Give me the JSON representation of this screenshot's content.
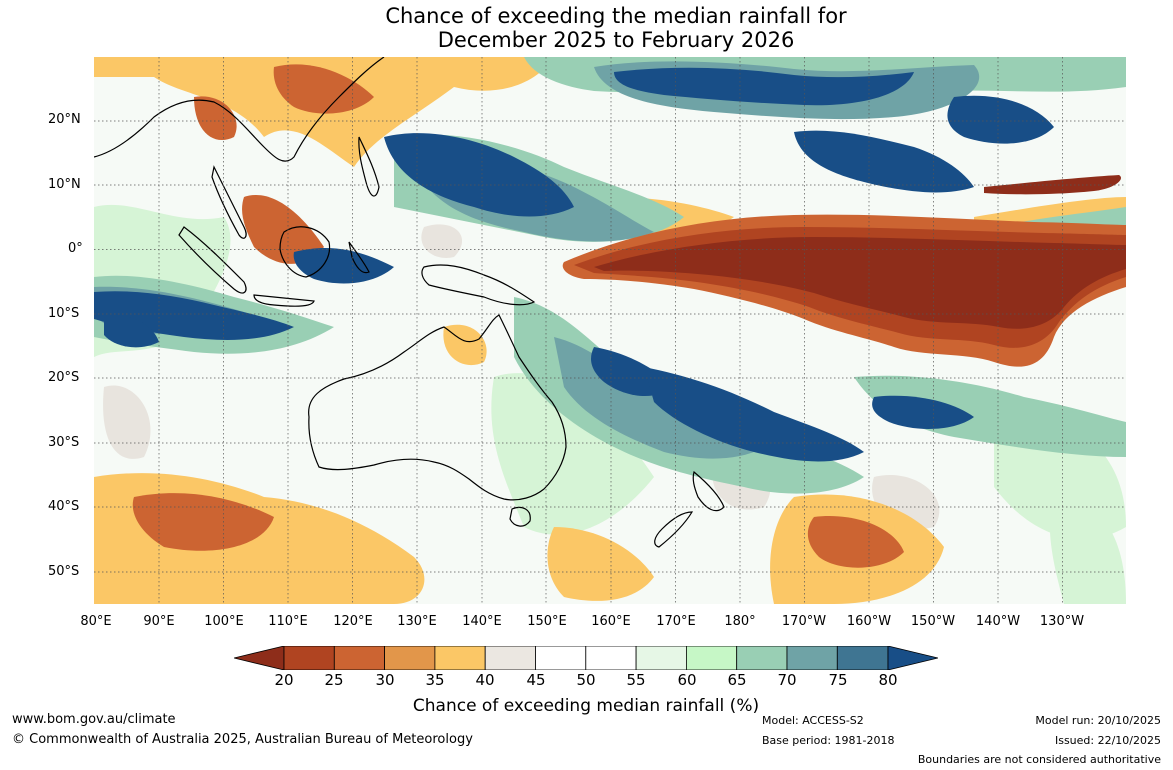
{
  "title_line1": "Chance of exceeding the median rainfall for",
  "title_line2": "December 2025 to February 2026",
  "lat_ticks": [
    "20°N",
    "10°N",
    "0°",
    "10°S",
    "20°S",
    "30°S",
    "40°S",
    "50°S"
  ],
  "lon_ticks": [
    "80°E",
    "90°E",
    "100°E",
    "110°E",
    "120°E",
    "130°E",
    "140°E",
    "150°E",
    "160°E",
    "170°E",
    "180°",
    "170°W",
    "160°W",
    "150°W",
    "140°W",
    "130°W"
  ],
  "colorbar": {
    "ticks": [
      "20",
      "25",
      "30",
      "35",
      "40",
      "45",
      "50",
      "55",
      "60",
      "65",
      "70",
      "75",
      "80"
    ],
    "colors": [
      "#8e2d1a",
      "#b04421",
      "#cc6432",
      "#e2964a",
      "#fbc766",
      "#ebe7e1",
      "#ffffff",
      "#ffffff",
      "#e6f7e6",
      "#c6f7c6",
      "#99cfb4",
      "#6fa3a6",
      "#3f7592",
      "#184e87"
    ],
    "label": "Chance of exceeding median rainfall (%)"
  },
  "footer": {
    "website": "www.bom.gov.au/climate",
    "copyright": "© Commonwealth of Australia 2025, Australian Bureau of Meteorology",
    "model": "Model: ACCESS-S2",
    "base_period": "Base period: 1981-2018",
    "model_run": "Model run: 20/10/2025",
    "issued": "Issued: 22/10/2025",
    "disclaimer": "Boundaries are not considered authoritative"
  }
}
